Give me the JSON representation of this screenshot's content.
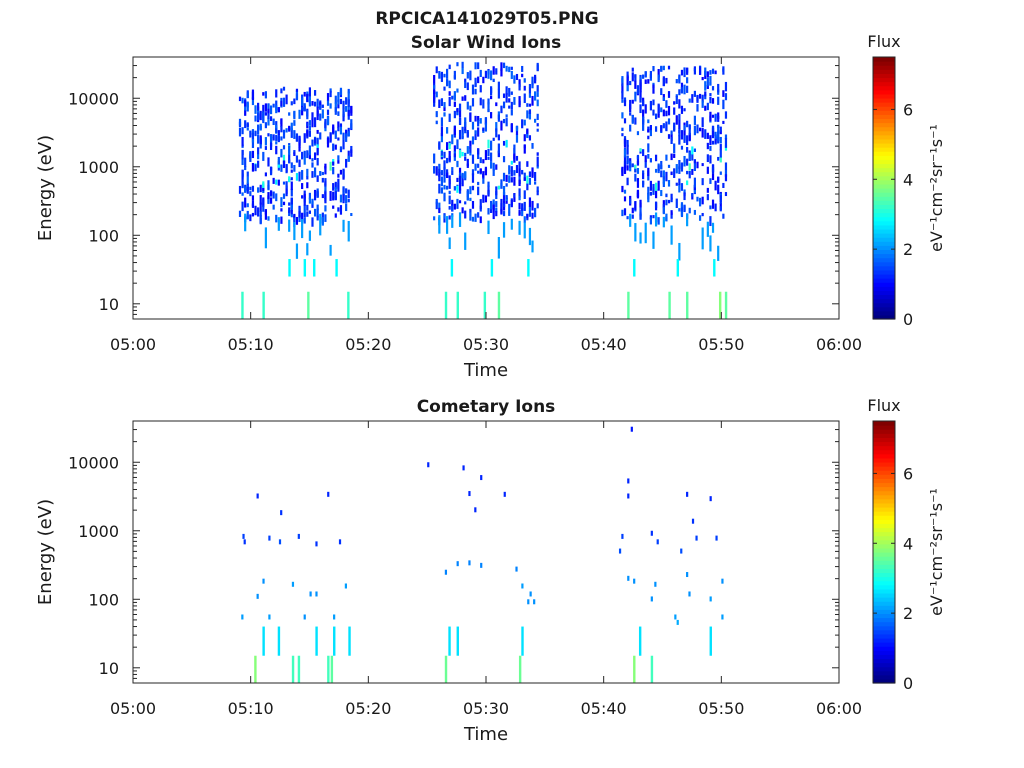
{
  "figure_title": "RPCICA141029T05.PNG",
  "chart_data": [
    {
      "type": "heatmap",
      "title": "Solar Wind Ions",
      "xlabel": "Time",
      "ylabel": "Energy (eV)",
      "x_ticks": [
        "05:00",
        "05:10",
        "05:20",
        "05:30",
        "05:40",
        "05:50",
        "06:00"
      ],
      "xlim_minutes": [
        0,
        60
      ],
      "y_scale": "log",
      "y_ticks": [
        {
          "value": 10,
          "label": "10"
        },
        {
          "value": 100,
          "label": "100"
        },
        {
          "value": 1000,
          "label": "1000"
        },
        {
          "value": 10000,
          "label": "10000"
        }
      ],
      "ylim": [
        6,
        40000
      ],
      "colorbar": {
        "title": "Flux",
        "unit_label": "eV⁻¹cm⁻²sr⁻¹s⁻¹",
        "range": [
          0,
          7.5
        ],
        "ticks": [
          0,
          2,
          4,
          6
        ],
        "colormap": "jet"
      },
      "bursts": [
        {
          "t_start": 9.0,
          "t_end": 18.5,
          "e_max": 15000
        },
        {
          "t_start": 25.5,
          "t_end": 34.5,
          "e_max": 35000
        },
        {
          "t_start": 41.5,
          "t_end": 50.5,
          "e_max": 30000
        }
      ],
      "low_energy_columns": [
        {
          "t": 9.2,
          "e_low": 6,
          "e_high": 15,
          "flux": 3.2
        },
        {
          "t": 11.0,
          "e_low": 6,
          "e_high": 15,
          "flux": 3.2
        },
        {
          "t": 13.2,
          "e_low": 25,
          "e_high": 45,
          "flux": 2.8
        },
        {
          "t": 14.5,
          "e_low": 25,
          "e_high": 45,
          "flux": 2.8
        },
        {
          "t": 14.8,
          "e_low": 6,
          "e_high": 15,
          "flux": 3.5
        },
        {
          "t": 15.3,
          "e_low": 25,
          "e_high": 45,
          "flux": 2.8
        },
        {
          "t": 17.2,
          "e_low": 25,
          "e_high": 45,
          "flux": 2.8
        },
        {
          "t": 18.2,
          "e_low": 6,
          "e_high": 15,
          "flux": 3.2
        },
        {
          "t": 26.5,
          "e_low": 6,
          "e_high": 15,
          "flux": 3.2
        },
        {
          "t": 27.0,
          "e_low": 25,
          "e_high": 45,
          "flux": 2.8
        },
        {
          "t": 27.5,
          "e_low": 6,
          "e_high": 15,
          "flux": 3.2
        },
        {
          "t": 29.8,
          "e_low": 6,
          "e_high": 15,
          "flux": 3.2
        },
        {
          "t": 30.4,
          "e_low": 25,
          "e_high": 45,
          "flux": 2.8
        },
        {
          "t": 31.0,
          "e_low": 6,
          "e_high": 15,
          "flux": 3.5
        },
        {
          "t": 33.5,
          "e_low": 25,
          "e_high": 45,
          "flux": 2.8
        },
        {
          "t": 42.0,
          "e_low": 6,
          "e_high": 15,
          "flux": 3.5
        },
        {
          "t": 42.5,
          "e_low": 25,
          "e_high": 45,
          "flux": 2.8
        },
        {
          "t": 45.5,
          "e_low": 6,
          "e_high": 15,
          "flux": 3.5
        },
        {
          "t": 46.2,
          "e_low": 25,
          "e_high": 45,
          "flux": 2.8
        },
        {
          "t": 47.0,
          "e_low": 6,
          "e_high": 15,
          "flux": 3.5
        },
        {
          "t": 49.3,
          "e_low": 25,
          "e_high": 45,
          "flux": 2.8
        },
        {
          "t": 49.8,
          "e_low": 6,
          "e_high": 15,
          "flux": 3.8
        },
        {
          "t": 50.3,
          "e_low": 6,
          "e_high": 15,
          "flux": 3.5
        }
      ]
    },
    {
      "type": "heatmap",
      "title": "Cometary Ions",
      "xlabel": "Time",
      "ylabel": "Energy (eV)",
      "x_ticks": [
        "05:00",
        "05:10",
        "05:20",
        "05:30",
        "05:40",
        "05:50",
        "06:00"
      ],
      "xlim_minutes": [
        0,
        60
      ],
      "y_scale": "log",
      "y_ticks": [
        {
          "value": 10,
          "label": "10"
        },
        {
          "value": 100,
          "label": "100"
        },
        {
          "value": 1000,
          "label": "1000"
        },
        {
          "value": 10000,
          "label": "10000"
        }
      ],
      "ylim": [
        6,
        40000
      ],
      "colorbar": {
        "title": "Flux",
        "unit_label": "eV⁻¹cm⁻²sr⁻¹s⁻¹",
        "range": [
          0,
          7.5
        ],
        "ticks": [
          0,
          2,
          4,
          6
        ],
        "colormap": "jet"
      },
      "cells": [
        {
          "t": 9.3,
          "e": 900,
          "flux": 1.4
        },
        {
          "t": 9.4,
          "e": 750,
          "flux": 1.3
        },
        {
          "t": 10.5,
          "e": 3500,
          "flux": 1.2
        },
        {
          "t": 11.5,
          "e": 850,
          "flux": 1.4
        },
        {
          "t": 12.5,
          "e": 2000,
          "flux": 1.3
        },
        {
          "t": 12.4,
          "e": 750,
          "flux": 1.5
        },
        {
          "t": 14.0,
          "e": 900,
          "flux": 1.4
        },
        {
          "t": 15.5,
          "e": 700,
          "flux": 1.3
        },
        {
          "t": 16.5,
          "e": 3700,
          "flux": 1.2
        },
        {
          "t": 17.5,
          "e": 750,
          "flux": 1.3
        },
        {
          "t": 11.0,
          "e": 200,
          "flux": 2.0
        },
        {
          "t": 13.5,
          "e": 180,
          "flux": 2.1
        },
        {
          "t": 15.0,
          "e": 130,
          "flux": 2.0
        },
        {
          "t": 15.5,
          "e": 130,
          "flux": 2.0
        },
        {
          "t": 18.0,
          "e": 170,
          "flux": 2.1
        },
        {
          "t": 9.2,
          "e": 60,
          "flux": 2.1
        },
        {
          "t": 10.5,
          "e": 120,
          "flux": 2.0
        },
        {
          "t": 11.5,
          "e": 60,
          "flux": 2.1
        },
        {
          "t": 14.5,
          "e": 60,
          "flux": 2.0
        },
        {
          "t": 17.0,
          "e": 60,
          "flux": 2.1
        },
        {
          "t": 25.0,
          "e": 10000,
          "flux": 1.2
        },
        {
          "t": 28.0,
          "e": 9000,
          "flux": 1.2
        },
        {
          "t": 29.5,
          "e": 6500,
          "flux": 1.2
        },
        {
          "t": 28.5,
          "e": 3800,
          "flux": 1.2
        },
        {
          "t": 29.0,
          "e": 2200,
          "flux": 1.2
        },
        {
          "t": 31.5,
          "e": 3700,
          "flux": 1.2
        },
        {
          "t": 26.5,
          "e": 270,
          "flux": 1.9
        },
        {
          "t": 27.5,
          "e": 360,
          "flux": 1.9
        },
        {
          "t": 28.5,
          "e": 370,
          "flux": 1.9
        },
        {
          "t": 29.5,
          "e": 340,
          "flux": 1.9
        },
        {
          "t": 32.5,
          "e": 300,
          "flux": 1.9
        },
        {
          "t": 33.0,
          "e": 170,
          "flux": 2.1
        },
        {
          "t": 33.5,
          "e": 100,
          "flux": 2.0
        },
        {
          "t": 34.0,
          "e": 100,
          "flux": 2.0
        },
        {
          "t": 33.7,
          "e": 130,
          "flux": 2.0
        },
        {
          "t": 42.3,
          "e": 33000,
          "flux": 1.1
        },
        {
          "t": 42.0,
          "e": 5800,
          "flux": 1.2
        },
        {
          "t": 42.0,
          "e": 3500,
          "flux": 1.2
        },
        {
          "t": 41.5,
          "e": 900,
          "flux": 1.4
        },
        {
          "t": 41.3,
          "e": 550,
          "flux": 1.5
        },
        {
          "t": 44.0,
          "e": 1000,
          "flux": 1.3
        },
        {
          "t": 44.5,
          "e": 750,
          "flux": 1.4
        },
        {
          "t": 47.0,
          "e": 3700,
          "flux": 1.2
        },
        {
          "t": 47.5,
          "e": 1500,
          "flux": 1.3
        },
        {
          "t": 47.8,
          "e": 850,
          "flux": 1.4
        },
        {
          "t": 46.5,
          "e": 550,
          "flux": 1.5
        },
        {
          "t": 49.0,
          "e": 3200,
          "flux": 1.2
        },
        {
          "t": 49.5,
          "e": 850,
          "flux": 1.4
        },
        {
          "t": 42.0,
          "e": 220,
          "flux": 2.0
        },
        {
          "t": 42.5,
          "e": 200,
          "flux": 2.0
        },
        {
          "t": 44.3,
          "e": 180,
          "flux": 2.0
        },
        {
          "t": 47.0,
          "e": 250,
          "flux": 2.0
        },
        {
          "t": 47.2,
          "e": 130,
          "flux": 2.0
        },
        {
          "t": 50.0,
          "e": 200,
          "flux": 2.0
        },
        {
          "t": 44.0,
          "e": 110,
          "flux": 2.0
        },
        {
          "t": 46.0,
          "e": 60,
          "flux": 2.1
        },
        {
          "t": 46.2,
          "e": 50,
          "flux": 2.2
        },
        {
          "t": 49.0,
          "e": 110,
          "flux": 2.1
        },
        {
          "t": 50.0,
          "e": 60,
          "flux": 2.1
        }
      ],
      "columns": [
        {
          "t": 10.3,
          "e_low": 6,
          "e_high": 15,
          "flux": 3.8
        },
        {
          "t": 11.0,
          "e_low": 15,
          "e_high": 40,
          "flux": 2.6
        },
        {
          "t": 12.3,
          "e_low": 15,
          "e_high": 40,
          "flux": 2.6
        },
        {
          "t": 13.5,
          "e_low": 6,
          "e_high": 15,
          "flux": 3.3
        },
        {
          "t": 14.0,
          "e_low": 6,
          "e_high": 15,
          "flux": 3.3
        },
        {
          "t": 15.5,
          "e_low": 15,
          "e_high": 40,
          "flux": 2.6
        },
        {
          "t": 16.5,
          "e_low": 6,
          "e_high": 15,
          "flux": 3.3
        },
        {
          "t": 16.8,
          "e_low": 6,
          "e_high": 15,
          "flux": 3.5
        },
        {
          "t": 17.0,
          "e_low": 15,
          "e_high": 40,
          "flux": 2.6
        },
        {
          "t": 18.3,
          "e_low": 15,
          "e_high": 40,
          "flux": 2.6
        },
        {
          "t": 26.5,
          "e_low": 6,
          "e_high": 15,
          "flux": 3.6
        },
        {
          "t": 26.8,
          "e_low": 15,
          "e_high": 40,
          "flux": 2.6
        },
        {
          "t": 27.5,
          "e_low": 15,
          "e_high": 40,
          "flux": 2.6
        },
        {
          "t": 32.8,
          "e_low": 6,
          "e_high": 15,
          "flux": 3.6
        },
        {
          "t": 33.0,
          "e_low": 15,
          "e_high": 40,
          "flux": 2.6
        },
        {
          "t": 42.5,
          "e_low": 6,
          "e_high": 15,
          "flux": 3.8
        },
        {
          "t": 43.0,
          "e_low": 15,
          "e_high": 40,
          "flux": 2.6
        },
        {
          "t": 44.0,
          "e_low": 6,
          "e_high": 15,
          "flux": 3.3
        },
        {
          "t": 49.0,
          "e_low": 15,
          "e_high": 40,
          "flux": 2.6
        }
      ]
    }
  ]
}
